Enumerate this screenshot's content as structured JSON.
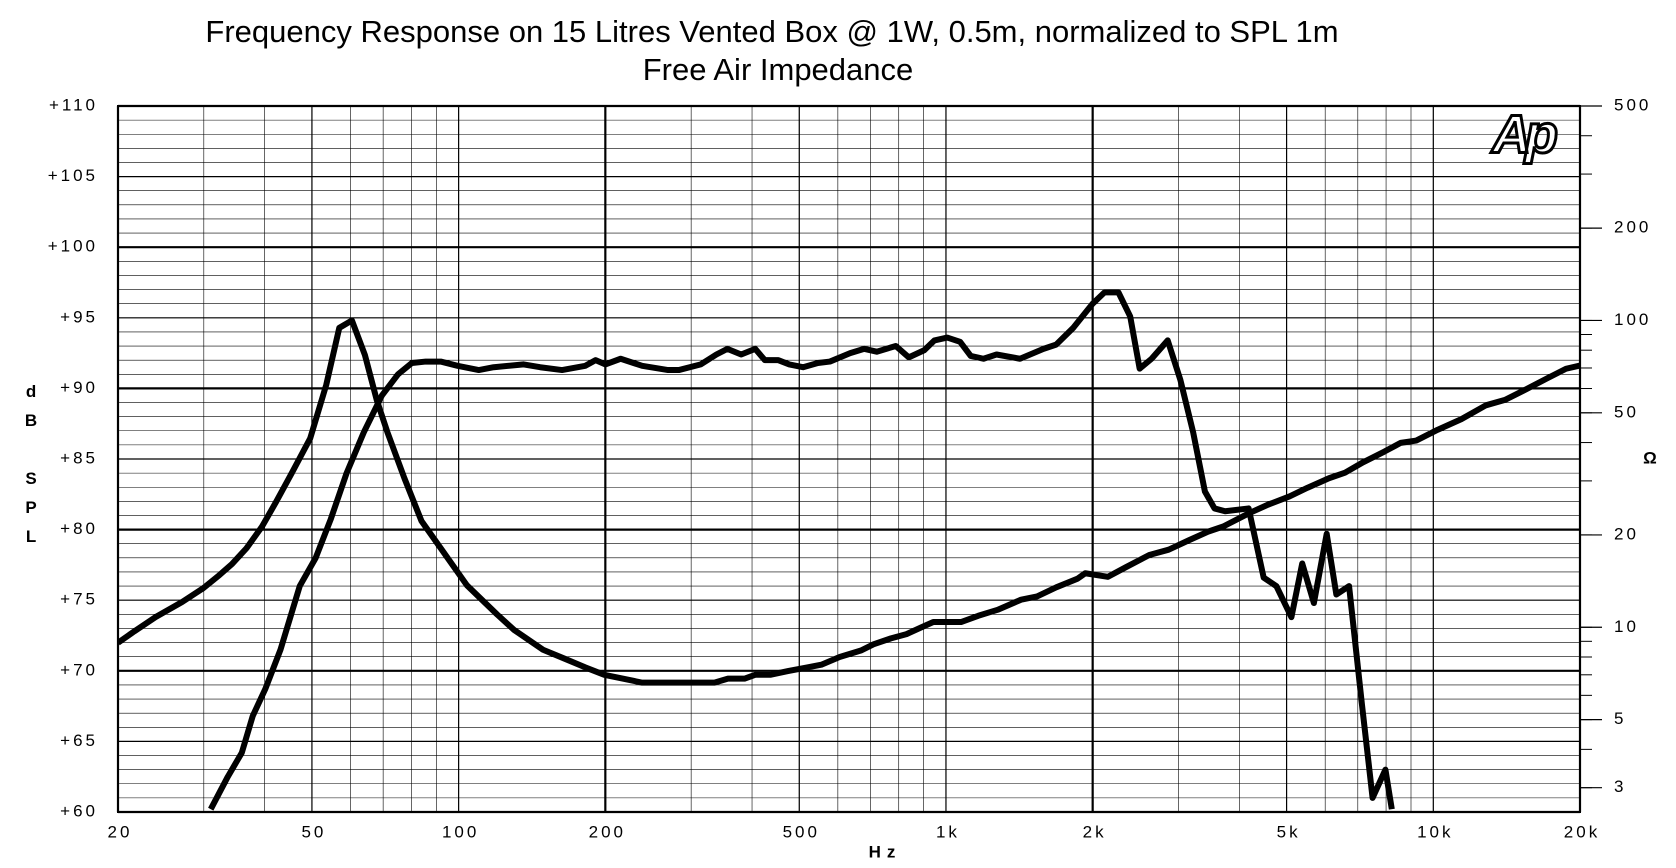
{
  "chart_data": {
    "type": "line",
    "title": "Frequency Response on 15 Litres Vented Box @ 1W, 0.5m, normalized to SPL 1m",
    "subtitle": "Free Air Impedance",
    "xlabel": "Hz",
    "ylabel": "dB SPL",
    "y2label": "Ω",
    "logo": "Ap",
    "xscale": "log",
    "y2scale": "log",
    "grid": true,
    "minor_grid": true,
    "xlim": [
      20,
      20000
    ],
    "xticks": [
      20,
      50,
      100,
      200,
      500,
      {
        "value": 1000,
        "label": "1k"
      },
      {
        "value": 2000,
        "label": "2k"
      },
      {
        "value": 5000,
        "label": "5k"
      },
      {
        "value": 10000,
        "label": "10k"
      },
      {
        "value": 20000,
        "label": "20k"
      }
    ],
    "ylim": [
      60,
      110
    ],
    "yticks": [
      {
        "value": 60,
        "label": "+60"
      },
      {
        "value": 65,
        "label": "+65"
      },
      {
        "value": 70,
        "label": "+70"
      },
      {
        "value": 75,
        "label": "+75"
      },
      {
        "value": 80,
        "label": "+80"
      },
      {
        "value": 85,
        "label": "+85"
      },
      {
        "value": 90,
        "label": "+90"
      },
      {
        "value": 95,
        "label": "+95"
      },
      {
        "value": 100,
        "label": "+100"
      },
      {
        "value": 105,
        "label": "+105"
      },
      {
        "value": 110,
        "label": "+110"
      }
    ],
    "y2lim": [
      2.5,
      500
    ],
    "y2ticks": [
      3,
      5,
      10,
      20,
      50,
      100,
      200,
      500
    ],
    "series": [
      {
        "color": "#000000",
        "x": [
          31.0,
          33.6,
          35.9,
          37.8,
          40.1,
          43.1,
          47.2,
          50.9,
          54.6,
          58.9,
          63.9,
          69.6,
          75.1,
          80.2,
          85.6,
          91.9,
          99.5,
          110,
          118,
          136,
          147,
          163,
          182,
          191,
          200,
          215,
          238,
          269,
          283,
          314,
          338,
          356,
          380,
          406,
          425,
          453,
          477,
          509,
          546,
          578,
          636,
          679,
          721,
          789,
          839,
          902,
          947,
          1006,
          1069,
          1124,
          1194,
          1270,
          1419,
          1585,
          1683,
          1826,
          2000,
          2115,
          2259,
          2388,
          2497,
          2642,
          2851,
          3027,
          3215,
          3399,
          3557,
          3740,
          4179,
          4487,
          4764,
          5115,
          5383,
          5688,
          6043,
          6325,
          6717,
          7139,
          7506,
          7976,
          8220
        ],
        "values": [
          60.2,
          62.5,
          64.2,
          66.8,
          68.7,
          71.5,
          76.0,
          78.0,
          80.7,
          84.0,
          86.9,
          89.5,
          91.0,
          91.8,
          91.9,
          91.9,
          91.6,
          91.3,
          91.5,
          91.7,
          91.5,
          91.3,
          91.6,
          92.0,
          91.7,
          92.1,
          91.6,
          91.3,
          91.3,
          91.7,
          92.4,
          92.8,
          92.4,
          92.8,
          92.0,
          92.0,
          91.7,
          91.5,
          91.8,
          91.9,
          92.5,
          92.8,
          92.6,
          93.0,
          92.2,
          92.7,
          93.4,
          93.6,
          93.3,
          92.3,
          92.1,
          92.4,
          92.1,
          92.8,
          93.1,
          94.3,
          96.0,
          96.8,
          96.8,
          95.1,
          91.4,
          92.1,
          93.4,
          90.6,
          86.9,
          82.7,
          81.5,
          81.3,
          81.5,
          76.6,
          76.0,
          73.8,
          77.6,
          74.8,
          79.7,
          75.4,
          76.0,
          67.6,
          61.0,
          63.0,
          60.2
        ]
      },
      {
        "color": "#000000",
        "axis": "y2",
        "x": [
          20,
          21.6,
          23.9,
          27.1,
          29.9,
          32.3,
          34.3,
          36.7,
          39.5,
          42.2,
          45.5,
          49.6,
          53.5,
          56.9,
          60.4,
          64.2,
          67.9,
          71.4,
          77.4,
          83.9,
          91.9,
          104,
          120,
          130,
          149,
          165,
          182,
          199,
          238,
          335,
          357,
          386,
          406,
          436,
          474,
          519,
          555,
          605,
          669,
          710,
          771,
          830,
          891,
          942,
          1074,
          1165,
          1276,
          1426,
          1538,
          1684,
          1862,
          1931,
          2148,
          2340,
          2613,
          2864,
          3147,
          3451,
          3706,
          4179,
          4581,
          5068,
          5521,
          6107,
          6590,
          7178,
          7940,
          8570,
          9226,
          10200,
          11420,
          12820,
          14030,
          15520,
          17100,
          18720,
          20000
        ],
        "values": [
          8.9,
          9.7,
          10.8,
          12.1,
          13.4,
          14.8,
          16.1,
          18.1,
          21.3,
          25.6,
          31.9,
          41.3,
          61.7,
          94.6,
          100,
          77.3,
          55.1,
          43.3,
          30.6,
          22.2,
          18.1,
          13.7,
          11.0,
          9.8,
          8.45,
          7.9,
          7.4,
          7.0,
          6.6,
          6.6,
          6.8,
          6.8,
          7.0,
          7.0,
          7.2,
          7.4,
          7.55,
          8.0,
          8.4,
          8.8,
          9.2,
          9.5,
          10,
          10.4,
          10.4,
          10.9,
          11.4,
          12.3,
          12.6,
          13.5,
          14.4,
          15.0,
          14.6,
          15.7,
          17.2,
          17.9,
          19.2,
          20.5,
          21.3,
          23.5,
          25.1,
          26.7,
          28.5,
          30.6,
          31.9,
          34.5,
          37.4,
          39.9,
          40.6,
          44.0,
          47.7,
          52.9,
          55.1,
          59.7,
          64.7,
          69.6,
          71.3
        ]
      }
    ]
  }
}
